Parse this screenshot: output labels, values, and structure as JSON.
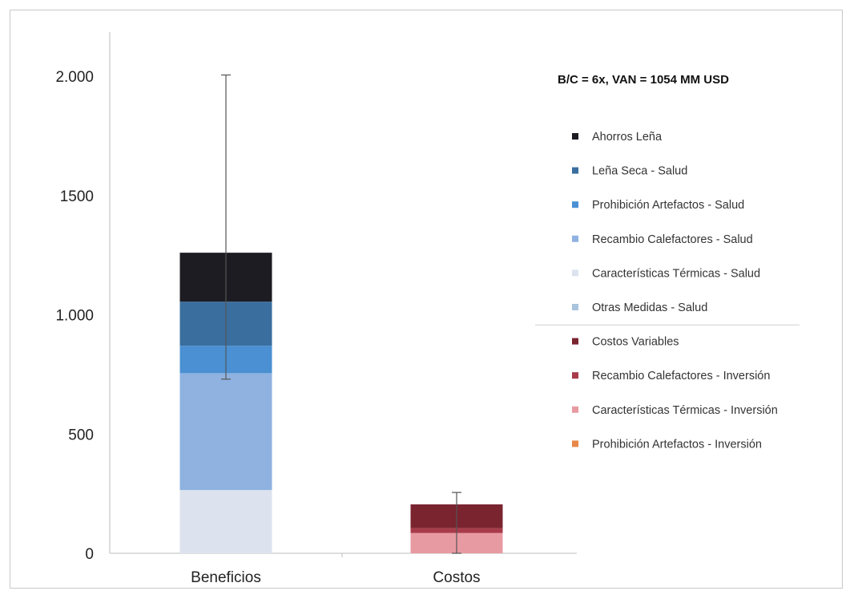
{
  "chart_data": {
    "type": "bar",
    "stacked": true,
    "title": "B/C = 6x, VAN = 1054 MM USD",
    "xlabel": "",
    "ylabel": "",
    "ylim": [
      0,
      2000
    ],
    "yticks": [
      {
        "value": 0,
        "label": "0"
      },
      {
        "value": 500,
        "label": "500"
      },
      {
        "value": 1000,
        "label": "1.000"
      },
      {
        "value": 1500,
        "label": "1500"
      },
      {
        "value": 2000,
        "label": "2.000"
      }
    ],
    "grid": false,
    "legend_position": "right",
    "categories": [
      "Beneficios",
      "Costos"
    ],
    "series": [
      {
        "name": "Características Térmicas - Salud",
        "color": "#dde3ee",
        "values": [
          265,
          0
        ]
      },
      {
        "name": "Recambio Calefactores - Salud",
        "color": "#8fb2e0",
        "values": [
          490,
          0
        ]
      },
      {
        "name": "Prohibición Artefactos - Salud",
        "color": "#4a90d2",
        "values": [
          115,
          0
        ]
      },
      {
        "name": "Leña Seca - Salud",
        "color": "#3a6e9e",
        "values": [
          185,
          0
        ]
      },
      {
        "name": "Ahorros Leña",
        "color": "#1c1c22",
        "values": [
          205,
          0
        ]
      },
      {
        "name": "Otras Medidas - Salud",
        "color": "#a9c4dc",
        "values": [
          0,
          0
        ]
      },
      {
        "name": "Características Térmicas - Inversión",
        "color": "#e89aa2",
        "values": [
          0,
          85
        ]
      },
      {
        "name": "Recambio Calefactores - Inversión",
        "color": "#a83a4a",
        "values": [
          0,
          20
        ]
      },
      {
        "name": "Costos Variables",
        "color": "#7a2430",
        "values": [
          0,
          100
        ]
      },
      {
        "name": "Prohibición Artefactos - Inversión",
        "color": "#e8884a",
        "values": [
          0,
          0
        ]
      }
    ],
    "error_bars": [
      {
        "category": "Beneficios",
        "low": 730,
        "high": 2005
      },
      {
        "category": "Costos",
        "low": 0,
        "high": 255
      }
    ],
    "legend": {
      "items": [
        {
          "name": "Ahorros Leña",
          "color": "#1c1c22"
        },
        {
          "name": "Leña Seca - Salud",
          "color": "#3a6e9e"
        },
        {
          "name": "Prohibición Artefactos - Salud",
          "color": "#4a90d2"
        },
        {
          "name": "Recambio Calefactores - Salud",
          "color": "#8fb2e0"
        },
        {
          "name": "Características Térmicas - Salud",
          "color": "#dde3ee"
        },
        {
          "name": "Otras Medidas - Salud",
          "color": "#a9c4dc"
        },
        {
          "name": "Costos Variables",
          "color": "#7a2430"
        },
        {
          "name": "Recambio Calefactores - Inversión",
          "color": "#a83a4a"
        },
        {
          "name": "Características Térmicas - Inversión",
          "color": "#e89aa2"
        },
        {
          "name": "Prohibición Artefactos - Inversión",
          "color": "#e8884a"
        }
      ],
      "divider_after": 6
    }
  }
}
